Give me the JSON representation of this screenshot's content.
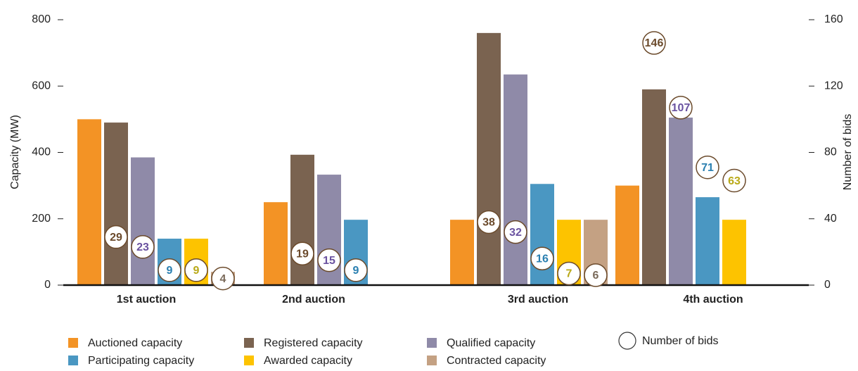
{
  "chart_data": {
    "type": "bar",
    "categories": [
      "1st auction",
      "2nd auction",
      "3rd auction",
      "4th auction"
    ],
    "ylabel": "Capacity (MW)",
    "y2label": "Number of bids",
    "ylim": [
      0,
      800
    ],
    "yticks": [
      0,
      200,
      400,
      600,
      800
    ],
    "y2lim": [
      0,
      160
    ],
    "y2ticks": [
      0,
      40,
      80,
      120,
      160
    ],
    "series": [
      {
        "name": "Auctioned capacity",
        "color": "#f39325",
        "values": [
          500,
          250,
          197,
          300
        ]
      },
      {
        "name": "Registered capacity",
        "color": "#7a6350",
        "values": [
          490,
          393,
          760,
          590
        ],
        "bids": [
          29,
          19,
          38,
          146
        ],
        "bid_color": "#6b4a2b"
      },
      {
        "name": "Qualified capacity",
        "color": "#8f8aa8",
        "values": [
          385,
          333,
          635,
          505
        ],
        "bids": [
          23,
          15,
          32,
          107
        ],
        "bid_color": "#6a52a0"
      },
      {
        "name": "Participating capacity",
        "color": "#4a97c2",
        "values": [
          140,
          197,
          305,
          265
        ],
        "bids": [
          9,
          9,
          16,
          71
        ],
        "bid_color": "#2a7fb0"
      },
      {
        "name": "Awarded capacity",
        "color": "#fdc300",
        "values": [
          140,
          null,
          197,
          197
        ],
        "bids": [
          9,
          null,
          7,
          63
        ],
        "bid_color": "#b9a918"
      },
      {
        "name": "Contracted capacity",
        "color": "#c4a183",
        "values": [
          40,
          null,
          197,
          null
        ],
        "bids": [
          4,
          null,
          6,
          null
        ],
        "bid_color": "#7a6a5a"
      }
    ],
    "bids_legend": "Number of bids"
  }
}
